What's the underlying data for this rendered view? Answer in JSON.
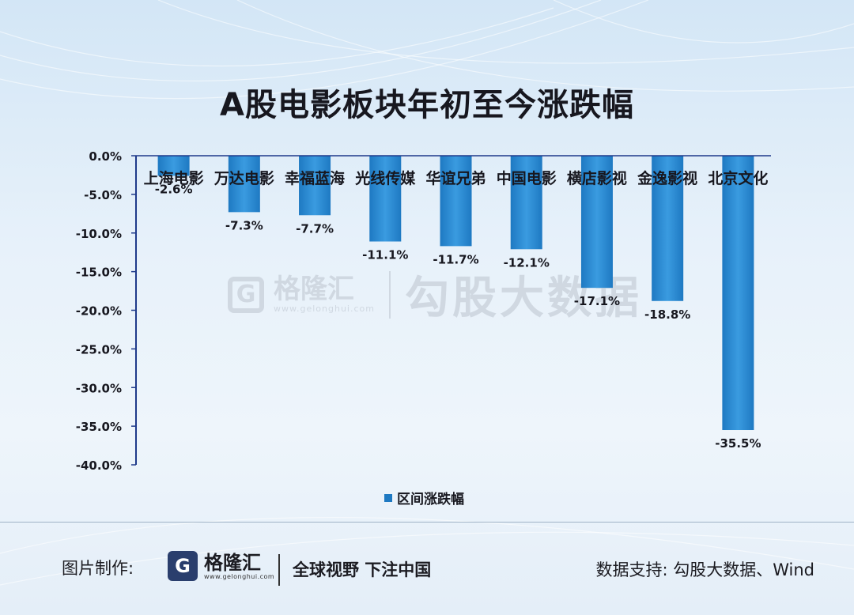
{
  "title": "A股电影板块年初至今涨跌幅",
  "colors": {
    "bar": "#1e79c2",
    "bar_light": "#3a9be0",
    "axis": "#1f3a8a",
    "text": "#17171f"
  },
  "chart_data": {
    "type": "bar",
    "title": "A股电影板块年初至今涨跌幅",
    "categories": [
      "上海电影",
      "万达电影",
      "幸福蓝海",
      "光线传媒",
      "华谊兄弟",
      "中国电影",
      "横店影视",
      "金逸影视",
      "北京文化"
    ],
    "series": [
      {
        "name": "区间涨跌幅",
        "values": [
          -2.6,
          -7.3,
          -7.7,
          -11.1,
          -11.7,
          -12.1,
          -17.1,
          -18.8,
          -35.5
        ],
        "labels": [
          "-2.6%",
          "-7.3%",
          "-7.7%",
          "-11.1%",
          "-11.7%",
          "-12.1%",
          "-17.1%",
          "-18.8%",
          "-35.5%"
        ]
      }
    ],
    "ylim": [
      -40,
      0
    ],
    "y_ticks": [
      "0.0%",
      "-5.0%",
      "-10.0%",
      "-15.0%",
      "-20.0%",
      "-25.0%",
      "-30.0%",
      "-35.0%",
      "-40.0%"
    ],
    "xlabel": "",
    "ylabel": "",
    "legend": "bottom-center"
  },
  "watermark": {
    "logo_glyph": "G",
    "brand": "格隆汇",
    "url": "www.gelonghui.com",
    "text": "勾股大数据"
  },
  "footer": {
    "credit_label": "图片制作:",
    "logo_glyph": "G",
    "brand": "格隆汇",
    "brand_url": "www.gelonghui.com",
    "slogan": "全球视野 下注中国",
    "source": "数据支持: 勾股大数据、Wind"
  }
}
